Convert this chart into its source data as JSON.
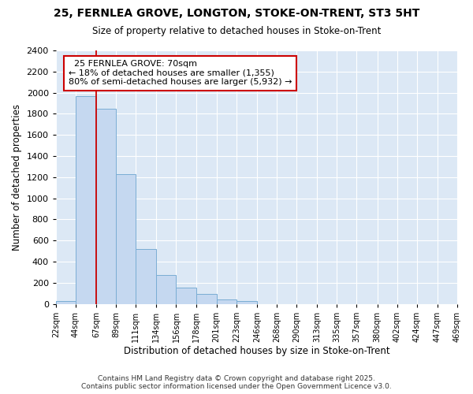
{
  "title": "25, FERNLEA GROVE, LONGTON, STOKE-ON-TRENT, ST3 5HT",
  "subtitle": "Size of property relative to detached houses in Stoke-on-Trent",
  "xlabel": "Distribution of detached houses by size in Stoke-on-Trent",
  "ylabel": "Number of detached properties",
  "annotation_title": "25 FERNLEA GROVE: 70sqm",
  "annotation_line1": "← 18% of detached houses are smaller (1,355)",
  "annotation_line2": "80% of semi-detached houses are larger (5,932) →",
  "footer_line1": "Contains HM Land Registry data © Crown copyright and database right 2025.",
  "footer_line2": "Contains public sector information licensed under the Open Government Licence v3.0.",
  "property_line_x": 67,
  "bar_edges": [
    22,
    44,
    67,
    89,
    111,
    134,
    156,
    178,
    201,
    223,
    246,
    268,
    290,
    313,
    335,
    357,
    380,
    402,
    424,
    447,
    469
  ],
  "bar_heights": [
    30,
    1970,
    1850,
    1230,
    520,
    270,
    150,
    90,
    40,
    30,
    0,
    0,
    0,
    0,
    0,
    0,
    0,
    0,
    0,
    0
  ],
  "bar_color": "#c5d8f0",
  "bar_edge_color": "#7aadd4",
  "property_line_color": "#cc0000",
  "annotation_box_color": "#cc0000",
  "figure_background": "#ffffff",
  "plot_background": "#dce8f5",
  "grid_color": "#ffffff",
  "ylim": [
    0,
    2400
  ],
  "yticks": [
    0,
    200,
    400,
    600,
    800,
    1000,
    1200,
    1400,
    1600,
    1800,
    2000,
    2200,
    2400
  ]
}
